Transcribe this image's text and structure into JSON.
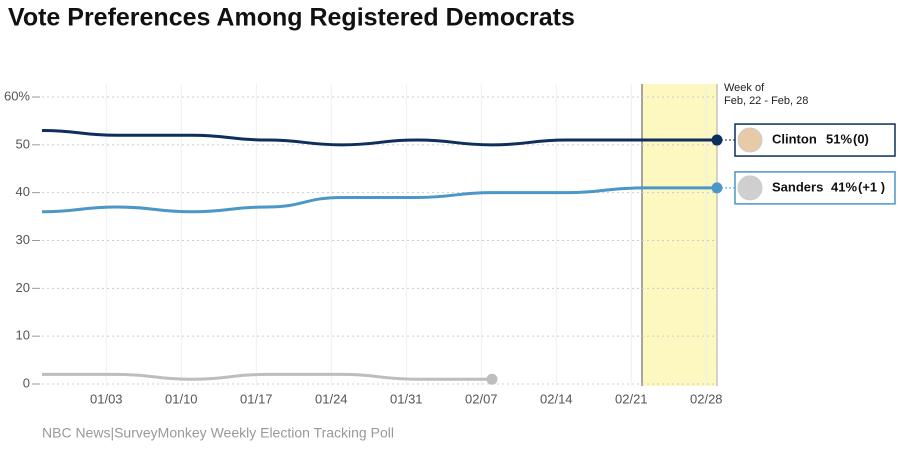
{
  "chart_data": {
    "type": "line",
    "title": "Vote Preferences Among Registered Democrats",
    "x": [
      0,
      7,
      14,
      21,
      28,
      35,
      42,
      49,
      56,
      63
    ],
    "series": [
      {
        "name": "Clinton",
        "color": "#0d2f5c",
        "values": [
          53,
          52,
          52,
          51,
          50,
          51,
          50,
          51,
          51,
          51
        ]
      },
      {
        "name": "Sanders",
        "color": "#4c96c8",
        "values": [
          36,
          37,
          36,
          37,
          39,
          39,
          40,
          40,
          41,
          41
        ]
      },
      {
        "color": "#bdbdbd",
        "values": [
          2,
          2,
          1,
          2,
          2,
          1,
          1,
          null,
          null,
          null
        ]
      }
    ],
    "xlim": [
      0,
      63
    ],
    "xticks": [
      {
        "value": 6,
        "label": "01/03"
      },
      {
        "value": 13,
        "label": "01/10"
      },
      {
        "value": 20,
        "label": "01/17"
      },
      {
        "value": 27,
        "label": "01/24"
      },
      {
        "value": 34,
        "label": "01/31"
      },
      {
        "value": 41,
        "label": "02/07"
      },
      {
        "value": 48,
        "label": "02/14"
      },
      {
        "value": 55,
        "label": "02/21"
      },
      {
        "value": 62,
        "label": "02/28"
      }
    ],
    "ylim": [
      0,
      60
    ],
    "yticks": [
      0,
      10,
      20,
      30,
      40,
      50,
      {
        "value": 60,
        "label": "60%"
      }
    ],
    "grid": true,
    "highlight": {
      "xlim": [
        56,
        63
      ],
      "label_line1": "Week of",
      "label_line2": "Feb, 22 - Feb, 28"
    },
    "callouts": [
      {
        "value_label": "51%",
        "change": "(0)"
      },
      {
        "value_label": "41%",
        "change": "(+1 )"
      }
    ],
    "source": "NBC News|SurveyMonkey Weekly Election Tracking Poll"
  }
}
